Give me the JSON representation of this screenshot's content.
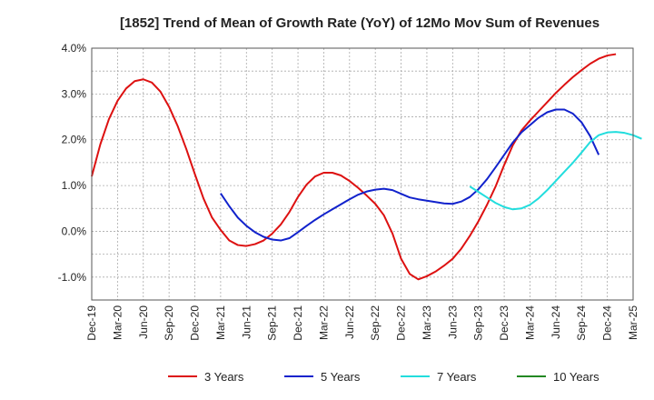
{
  "chart_data": {
    "type": "line",
    "title": "[1852]  Trend of Mean of Growth Rate (YoY) of 12Mo Mov Sum of Revenues",
    "xlabel": "",
    "ylabel": "",
    "ylim": [
      -1.5,
      4.0
    ],
    "y_ticks": [
      {
        "value": 4.0,
        "label": "4.0%"
      },
      {
        "value": 3.0,
        "label": "3.0%"
      },
      {
        "value": 2.0,
        "label": "2.0%"
      },
      {
        "value": 1.0,
        "label": "1.0%"
      },
      {
        "value": 0.0,
        "label": "0.0%"
      },
      {
        "value": -1.0,
        "label": "-1.0%"
      }
    ],
    "x_ticks": [
      "Dec-19",
      "Mar-20",
      "Jun-20",
      "Sep-20",
      "Dec-20",
      "Mar-21",
      "Jun-21",
      "Sep-21",
      "Dec-21",
      "Mar-22",
      "Jun-22",
      "Sep-22",
      "Dec-22",
      "Mar-23",
      "Jun-23",
      "Sep-23",
      "Dec-23",
      "Mar-24",
      "Jun-24",
      "Sep-24",
      "Dec-24",
      "Mar-25"
    ],
    "x_month_range": [
      0,
      63
    ],
    "grid": true,
    "legend_position": "bottom",
    "series": [
      {
        "name": "3 Years",
        "color": "#dd1111",
        "start_month": 0,
        "values": [
          1.2,
          1.9,
          2.45,
          2.85,
          3.12,
          3.28,
          3.32,
          3.25,
          3.05,
          2.72,
          2.3,
          1.8,
          1.25,
          0.72,
          0.3,
          0.03,
          -0.2,
          -0.3,
          -0.32,
          -0.28,
          -0.2,
          -0.05,
          0.15,
          0.42,
          0.75,
          1.02,
          1.2,
          1.28,
          1.28,
          1.22,
          1.1,
          0.95,
          0.78,
          0.6,
          0.35,
          -0.05,
          -0.6,
          -0.93,
          -1.05,
          -0.98,
          -0.88,
          -0.75,
          -0.6,
          -0.38,
          -0.1,
          0.22,
          0.58,
          0.98,
          1.45,
          1.88,
          2.2,
          2.42,
          2.62,
          2.82,
          3.02,
          3.2,
          3.37,
          3.52,
          3.66,
          3.77,
          3.84,
          3.87
        ]
      },
      {
        "name": "5 Years",
        "color": "#1122cc",
        "start_month": 15,
        "values": [
          0.83,
          0.55,
          0.3,
          0.12,
          -0.02,
          -0.12,
          -0.18,
          -0.2,
          -0.15,
          -0.02,
          0.12,
          0.25,
          0.37,
          0.48,
          0.59,
          0.7,
          0.8,
          0.87,
          0.91,
          0.93,
          0.9,
          0.82,
          0.74,
          0.7,
          0.67,
          0.64,
          0.61,
          0.6,
          0.65,
          0.75,
          0.92,
          1.14,
          1.4,
          1.67,
          1.94,
          2.16,
          2.32,
          2.48,
          2.6,
          2.66,
          2.66,
          2.57,
          2.38,
          2.08,
          1.67
        ]
      },
      {
        "name": "7 Years",
        "color": "#22dddd",
        "start_month": 44,
        "values": [
          0.98,
          0.86,
          0.74,
          0.62,
          0.53,
          0.48,
          0.5,
          0.58,
          0.72,
          0.9,
          1.1,
          1.3,
          1.5,
          1.72,
          1.95,
          2.1,
          2.16,
          2.17,
          2.15,
          2.1,
          2.02
        ]
      },
      {
        "name": "10 Years",
        "color": "#228822",
        "start_month": 0,
        "values": []
      }
    ]
  }
}
